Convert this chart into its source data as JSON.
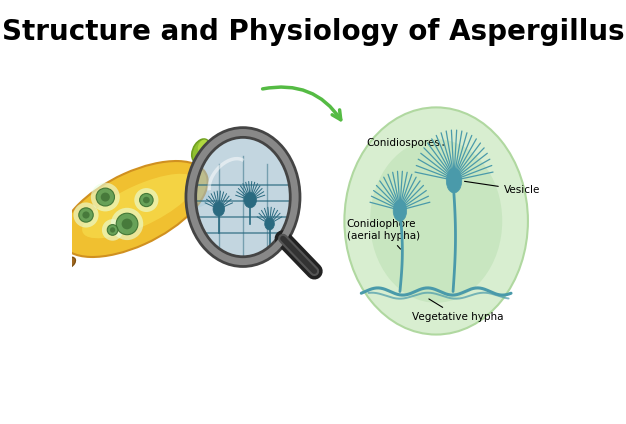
{
  "title": "Structure and Physiology of Aspergillus",
  "title_fontsize": 20,
  "title_fontweight": "bold",
  "background_color": "#ffffff",
  "labels": {
    "conidiospores": "Conidiospores",
    "vesicle": "Vesicle",
    "conidiophore": "Conidiophore\n(aerial hypha)",
    "vegetative_hypha": "Vegetative hypha"
  },
  "label_fontsize": 7.5,
  "fungus_color": "#4a9aaa",
  "circle_fill_inner": "#c8e6c0",
  "circle_fill_outer": "#d8eed0",
  "circle_edge": "#b0d8a0",
  "arrow_color": "#55bb44",
  "banana_yellow": "#f0c820",
  "banana_yellow2": "#e8a010",
  "banana_green": "#90c030",
  "banana_brown": "#b07020",
  "mold_green_dark": "#508850",
  "mold_green_light": "#88cc88",
  "magnifier_glass": "#8aaabb",
  "magnifier_rim": "#606060",
  "magnifier_handle": "#303030",
  "beam_color": "#c0e0f0"
}
